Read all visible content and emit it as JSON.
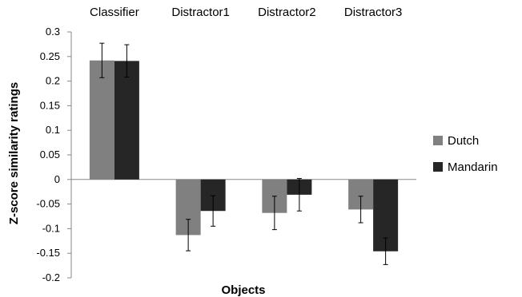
{
  "chart_data": {
    "type": "bar",
    "title": "",
    "xlabel": "Objects",
    "ylabel": "Z-score similarity ratings",
    "categories": [
      "Classifier",
      "Distractor1",
      "Distractor2",
      "Distractor3"
    ],
    "series": [
      {
        "name": "Dutch",
        "color": "#808080",
        "values": [
          0.242,
          -0.113,
          -0.068,
          -0.061
        ],
        "errors": [
          0.035,
          0.032,
          0.034,
          0.027
        ]
      },
      {
        "name": "Mandarin",
        "color": "#262626",
        "values": [
          0.241,
          -0.064,
          -0.031,
          -0.146
        ],
        "errors": [
          0.033,
          0.031,
          0.033,
          0.027
        ]
      }
    ],
    "ylim": [
      -0.2,
      0.3
    ],
    "yticks": [
      "0.3",
      "0.25",
      "0.2",
      "0.15",
      "0.1",
      "0.05",
      "0",
      "-0.05",
      "-0.1",
      "-0.15",
      "-0.2"
    ],
    "category_labels_position": "top",
    "legend_position": "right",
    "grid": false
  }
}
